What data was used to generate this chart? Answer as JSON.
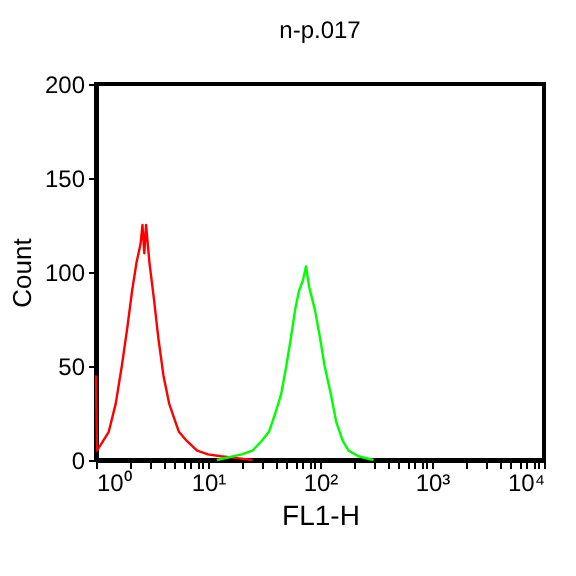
{
  "chart_data": {
    "type": "line",
    "title": "n-p.017",
    "xlabel": "FL1-H",
    "ylabel": "Count",
    "log": "x",
    "xlim": [
      1,
      10000
    ],
    "ylim": [
      0,
      200
    ],
    "xticks": [
      {
        "value": 1,
        "label": "10⁰"
      },
      {
        "value": 2,
        "label": null
      },
      {
        "value": 3,
        "label": null
      },
      {
        "value": 4,
        "label": null
      },
      {
        "value": 5,
        "label": null
      },
      {
        "value": 6,
        "label": null
      },
      {
        "value": 7,
        "label": null
      },
      {
        "value": 8,
        "label": null
      },
      {
        "value": 9,
        "label": null
      },
      {
        "value": 10,
        "label": "10¹"
      },
      {
        "value": 20,
        "label": null
      },
      {
        "value": 30,
        "label": null
      },
      {
        "value": 40,
        "label": null
      },
      {
        "value": 50,
        "label": null
      },
      {
        "value": 60,
        "label": null
      },
      {
        "value": 70,
        "label": null
      },
      {
        "value": 80,
        "label": null
      },
      {
        "value": 90,
        "label": null
      },
      {
        "value": 100,
        "label": "10²"
      },
      {
        "value": 200,
        "label": null
      },
      {
        "value": 300,
        "label": null
      },
      {
        "value": 400,
        "label": null
      },
      {
        "value": 500,
        "label": null
      },
      {
        "value": 600,
        "label": null
      },
      {
        "value": 700,
        "label": null
      },
      {
        "value": 800,
        "label": null
      },
      {
        "value": 900,
        "label": null
      },
      {
        "value": 1000,
        "label": "10³"
      },
      {
        "value": 2000,
        "label": null
      },
      {
        "value": 3000,
        "label": null
      },
      {
        "value": 4000,
        "label": null
      },
      {
        "value": 5000,
        "label": null
      },
      {
        "value": 6000,
        "label": null
      },
      {
        "value": 7000,
        "label": null
      },
      {
        "value": 8000,
        "label": null
      },
      {
        "value": 9000,
        "label": null
      },
      {
        "value": 10000,
        "label": "10⁴"
      }
    ],
    "yticks": [
      0,
      50,
      100,
      150,
      200
    ],
    "grid": false,
    "legend": false,
    "series": [
      {
        "color": "#ff0000",
        "x": [
          1.0,
          1.02,
          1.1,
          1.3,
          1.5,
          1.7,
          1.9,
          2.1,
          2.3,
          2.5,
          2.6,
          2.7,
          2.8,
          3.0,
          3.3,
          3.6,
          4.0,
          4.5,
          5,
          5.5,
          6.5,
          8,
          10,
          13,
          18,
          25
        ],
        "values": [
          45,
          5,
          8,
          15,
          30,
          50,
          70,
          90,
          105,
          115,
          125,
          110,
          125,
          105,
          85,
          65,
          45,
          30,
          22,
          15,
          10,
          5,
          3,
          2,
          1,
          0
        ]
      },
      {
        "color": "#00ff00",
        "x": [
          12,
          20,
          25,
          30,
          35,
          40,
          45,
          50,
          55,
          60,
          65,
          70,
          75,
          80,
          90,
          100,
          110,
          125,
          140,
          160,
          180,
          220,
          300
        ],
        "values": [
          0,
          3,
          5,
          10,
          15,
          25,
          35,
          50,
          65,
          80,
          90,
          95,
          103,
          92,
          80,
          65,
          50,
          35,
          20,
          10,
          5,
          2,
          0
        ]
      }
    ]
  }
}
